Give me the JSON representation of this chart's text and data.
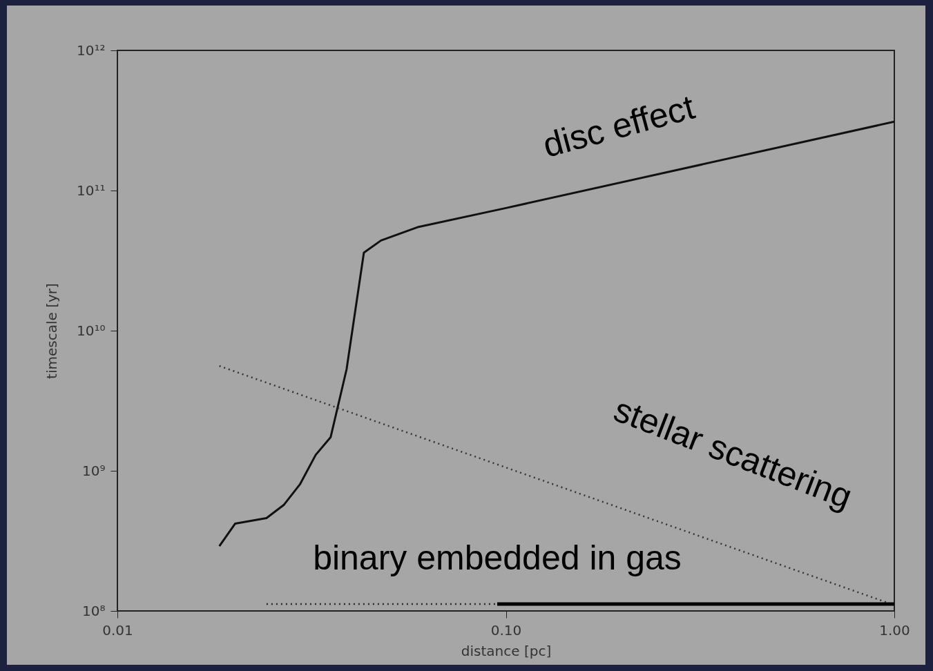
{
  "chart_data": {
    "type": "line",
    "xlabel": "distance [pc]",
    "ylabel": "timescale [yr]",
    "log": "xy",
    "grid": false,
    "xlim": [
      0.01,
      1
    ],
    "xticks": [
      {
        "value": 0.01,
        "label": "0.01"
      },
      {
        "value": 0.1,
        "label": "0.10"
      },
      {
        "value": 1,
        "label": "1.00"
      }
    ],
    "ylim": [
      100000000.0,
      1000000000000.0
    ],
    "yticks": [
      {
        "value": 100000000.0,
        "label": "10⁸"
      },
      {
        "value": 1000000000.0,
        "label": "10⁹"
      },
      {
        "value": 10000000000.0,
        "label": "10¹⁰"
      },
      {
        "value": 100000000000.0,
        "label": "10¹¹"
      },
      {
        "value": 1000000000000.0,
        "label": "10¹²"
      }
    ],
    "series": [
      {
        "name": "disc effect",
        "color": "#111111",
        "line_style": "solid",
        "x": [
          0.0183,
          0.0201,
          0.0242,
          0.0268,
          0.0295,
          0.0324,
          0.0354,
          0.0389,
          0.0431,
          0.0477,
          0.0596,
          0.1,
          1.0
        ],
        "values": [
          290000000.0,
          420000000.0,
          460000000.0,
          570000000.0,
          800000000.0,
          1300000000.0,
          1740000000.0,
          5300000000.0,
          36000000000.0,
          44000000000.0,
          55000000000.0,
          75000000000.0,
          310000000000.0
        ]
      },
      {
        "name": "stellar scattering",
        "color": "#333333",
        "line_style": "dotted",
        "x": [
          0.0183,
          1.0
        ],
        "values": [
          5600000000.0,
          110000000.0
        ]
      },
      {
        "color": "#2a2a2a",
        "line_style": "dotted",
        "x": [
          0.0242,
          0.095
        ],
        "values": [
          112000000.0,
          112000000.0
        ]
      },
      {
        "name": "binary embedded in gas",
        "color": "#000000",
        "line_style": "solid",
        "x": [
          0.095,
          1.0
        ],
        "values": [
          112000000.0,
          112000000.0
        ]
      }
    ]
  }
}
